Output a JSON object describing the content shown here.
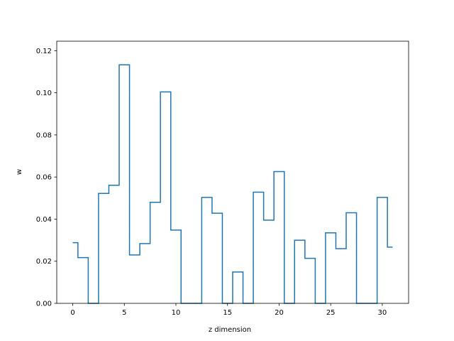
{
  "chart_data": {
    "type": "line",
    "drawstyle": "steps-mid",
    "title": "",
    "xlabel": "z dimension",
    "ylabel": "w",
    "xlim": [
      -1.55,
      32.55
    ],
    "ylim": [
      0,
      0.1245
    ],
    "x": [
      0,
      1,
      2,
      3,
      4,
      5,
      6,
      7,
      8,
      9,
      10,
      11,
      12,
      13,
      14,
      15,
      16,
      17,
      18,
      19,
      20,
      21,
      22,
      23,
      24,
      25,
      26,
      27,
      28,
      29,
      30,
      31
    ],
    "values": [
      0.0288,
      0.0217,
      0,
      0.0522,
      0.0561,
      0.1133,
      0.023,
      0.0284,
      0.048,
      0.1004,
      0.0348,
      0,
      0,
      0.0503,
      0.0428,
      0,
      0.0149,
      0,
      0.0528,
      0.0395,
      0.0626,
      0,
      0.03,
      0.0214,
      0,
      0.0335,
      0.026,
      0.043,
      0,
      0,
      0.0503,
      0.0267
    ],
    "x_ticks": [
      0,
      5,
      10,
      15,
      20,
      25,
      30
    ],
    "x_tick_labels": [
      "0",
      "5",
      "10",
      "15",
      "20",
      "25",
      "30"
    ],
    "y_ticks": [
      0,
      0.02,
      0.04,
      0.06,
      0.08,
      0.1,
      0.12
    ],
    "y_tick_labels": [
      "0.00",
      "0.02",
      "0.04",
      "0.06",
      "0.08",
      "0.10",
      "0.12"
    ],
    "grid": false,
    "line_color": "#1f77b4"
  }
}
